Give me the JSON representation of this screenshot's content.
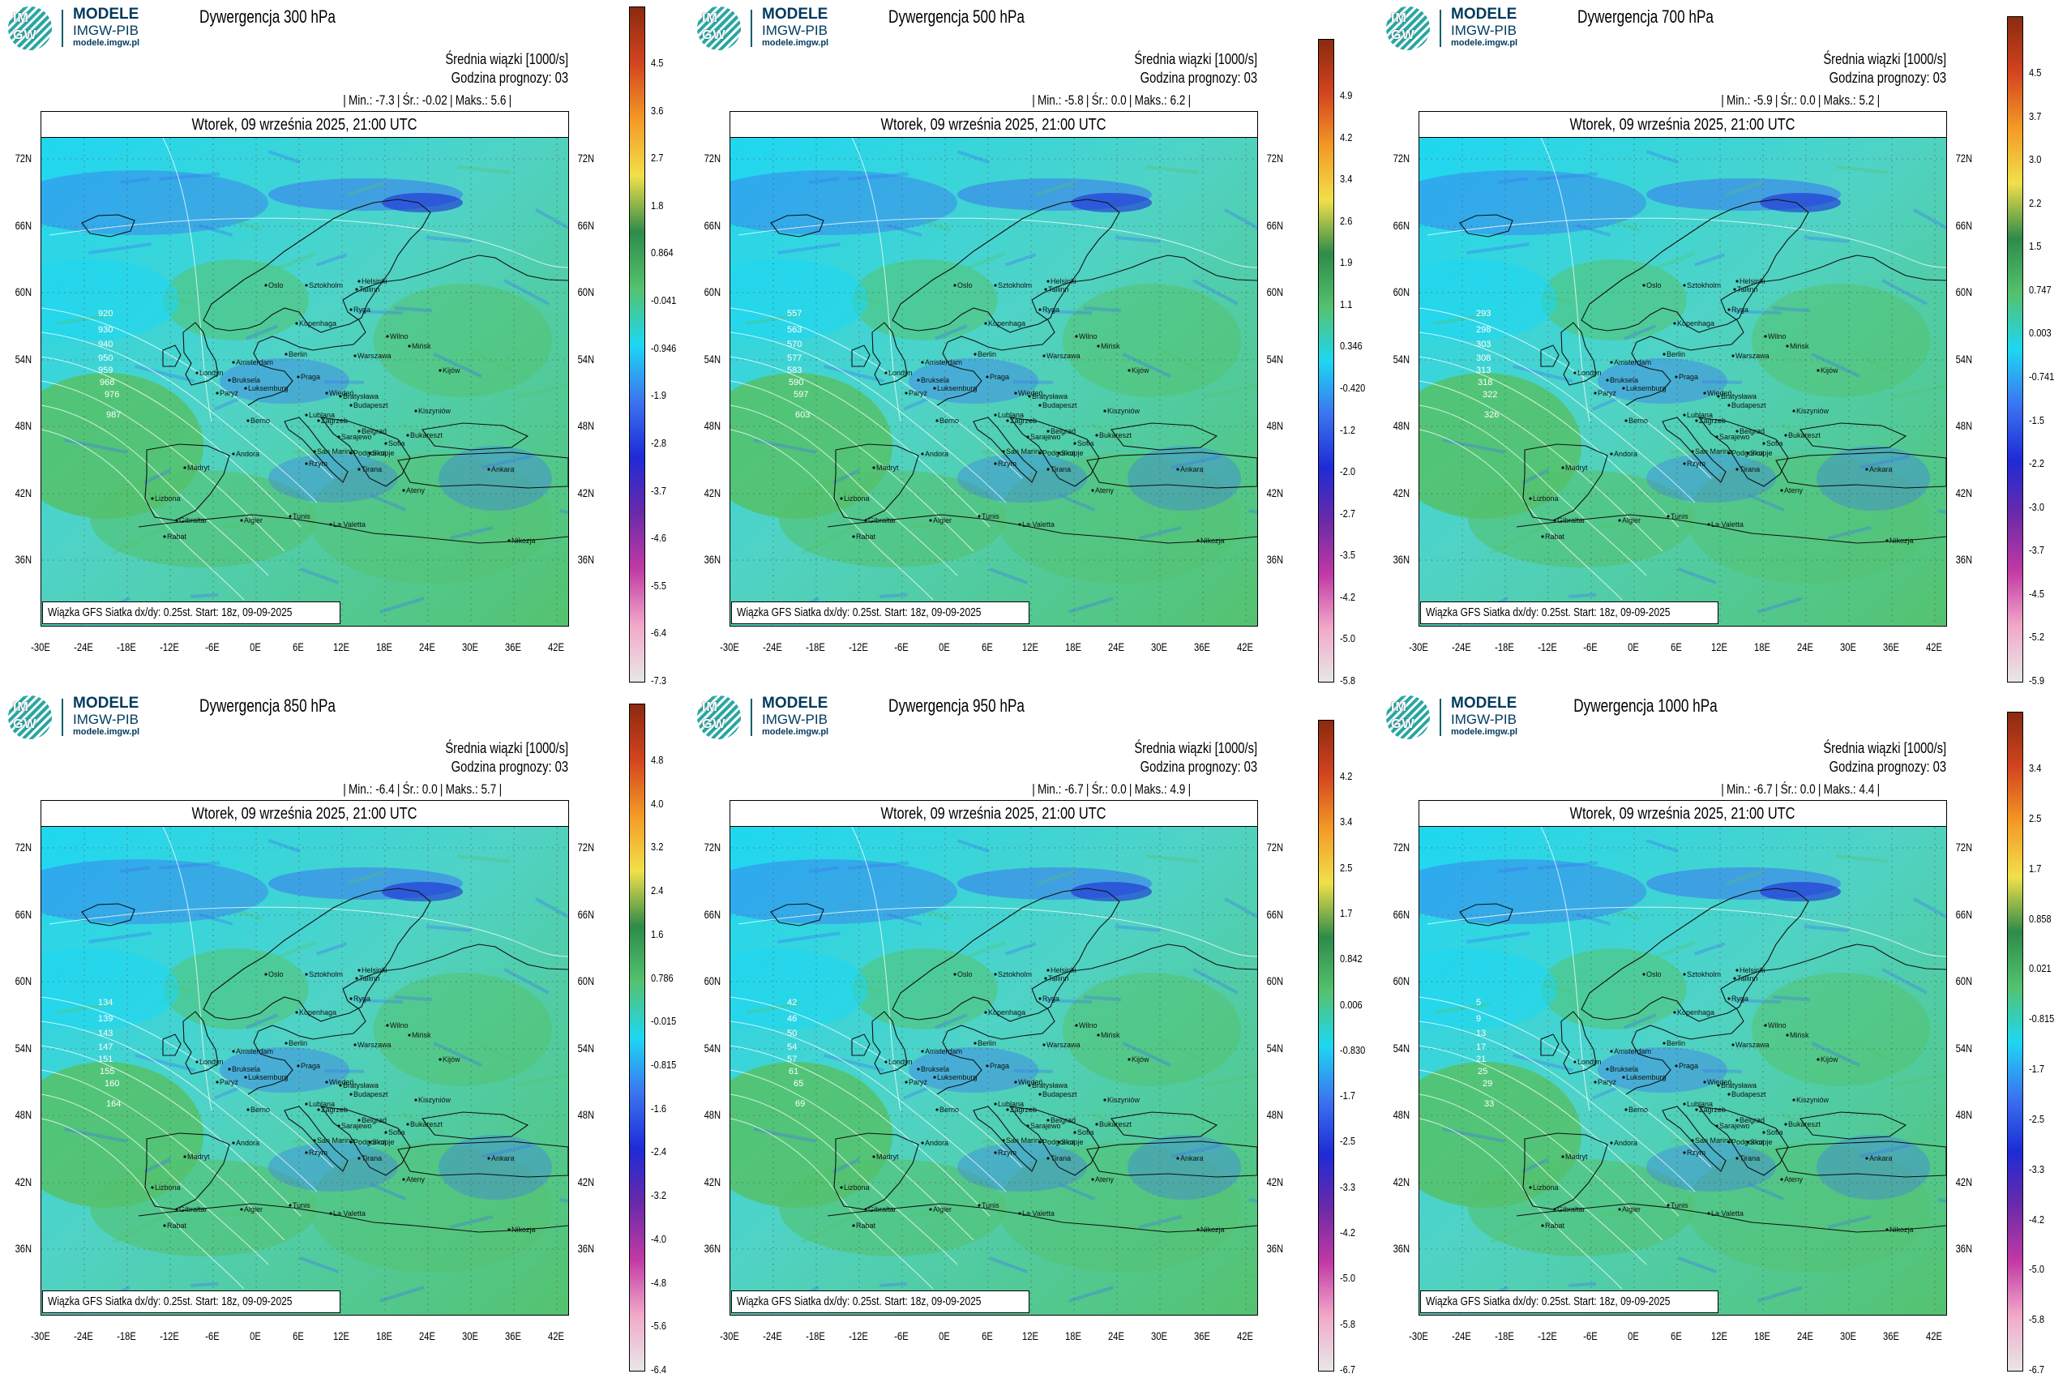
{
  "logo": {
    "line1": "MODELE",
    "line2": "IMGW-PIB",
    "line3": "modele.imgw.pl",
    "badge_top": "IM",
    "badge_bottom": "GW"
  },
  "common": {
    "subtitle": "Średnia wiązki [1000/s]",
    "forecast": "Godzina prognozy: 03",
    "date": "Wtorek, 09 września 2025, 21:00 UTC",
    "source": "Wiązka GFS Siatka dx/dy: 0.25st. Start: 18z, 09-09-2025",
    "min_label": "Min.:",
    "avg_label": "Śr.:",
    "max_label": "Maks.:",
    "lat_labels": [
      "72N",
      "66N",
      "60N",
      "54N",
      "48N",
      "42N",
      "36N"
    ],
    "lon_labels": [
      "-30E",
      "-24E",
      "-18E",
      "-12E",
      "-6E",
      "0E",
      "6E",
      "12E",
      "18E",
      "24E",
      "30E",
      "36E",
      "42E"
    ],
    "cities": [
      "Oslo",
      "Sztokholm",
      "Helsinki",
      "Tallinn",
      "Ryga",
      "Kopenhaga",
      "Wilno",
      "Mińsk",
      "Amsterdam",
      "Berlin",
      "Warszawa",
      "Londyn",
      "Bruksela",
      "Paryż",
      "Luksemburg",
      "Praga",
      "Kijów",
      "Wiedeń",
      "Bratysława",
      "Budapeszt",
      "Berno",
      "Lublana",
      "Zagrzeb",
      "Belgrad",
      "Bukareszt",
      "Kiszyniów",
      "Sarajewo",
      "Podgorica",
      "Skopje",
      "Sofia",
      "Andora",
      "San Marino",
      "Tirana",
      "Rzym",
      "Madryt",
      "Lizbona",
      "Gibraltar",
      "Algier",
      "Tunis",
      "La Valetta",
      "Rabat",
      "Ateny",
      "Ankara",
      "Nikozja"
    ]
  },
  "colorbar_colors": {
    "bottom": "#e7e7e7",
    "pink": "#f2a9c9",
    "magenta": "#c13aa4",
    "purple": "#6b2aa8",
    "darkblue": "#1e2bd6",
    "blue": "#3b75f0",
    "cyan": "#1ed7f2",
    "green": "#54c26e",
    "darkgreen": "#2e8b4a",
    "yellow": "#f1e04a",
    "orange": "#f39a26",
    "red": "#d3441f",
    "darkred": "#8b2a10"
  },
  "panels": [
    {
      "title": "Dywergencja 300 hPa",
      "min": "-7.3",
      "avg": "-0.02",
      "max": "5.6",
      "ticks": [
        "4.5",
        "3.6",
        "2.7",
        "1.8",
        "0.864",
        "-0.041",
        "-0.946",
        "-1.9",
        "-2.8",
        "-3.7",
        "-4.6",
        "-5.5",
        "-6.4",
        "-7.3"
      ],
      "contours": [
        "920",
        "930",
        "940",
        "950",
        "959",
        "968",
        "976",
        "987"
      ]
    },
    {
      "title": "Dywergencja 500 hPa",
      "min": "-5.8",
      "avg": "0.0",
      "max": "6.2",
      "ticks": [
        "4.9",
        "4.2",
        "3.4",
        "2.6",
        "1.9",
        "1.1",
        "0.346",
        "-0.420",
        "-1.2",
        "-2.0",
        "-2.7",
        "-3.5",
        "-4.2",
        "-5.0",
        "-5.8"
      ],
      "contours": [
        "557",
        "563",
        "570",
        "577",
        "583",
        "590",
        "597",
        "603"
      ]
    },
    {
      "title": "Dywergencja 700 hPa",
      "min": "-5.9",
      "avg": "0.0",
      "max": "5.2",
      "ticks": [
        "4.5",
        "3.7",
        "3.0",
        "2.2",
        "1.5",
        "0.747",
        "0.003",
        "-0.741",
        "-1.5",
        "-2.2",
        "-3.0",
        "-3.7",
        "-4.5",
        "-5.2",
        "-5.9"
      ],
      "contours": [
        "293",
        "298",
        "303",
        "308",
        "313",
        "318",
        "322",
        "326"
      ]
    },
    {
      "title": "Dywergencja 850 hPa",
      "min": "-6.4",
      "avg": "0.0",
      "max": "5.7",
      "ticks": [
        "4.8",
        "4.0",
        "3.2",
        "2.4",
        "1.6",
        "0.786",
        "-0.015",
        "-0.815",
        "-1.6",
        "-2.4",
        "-3.2",
        "-4.0",
        "-4.8",
        "-5.6",
        "-6.4"
      ],
      "contours": [
        "134",
        "139",
        "143",
        "147",
        "151",
        "155",
        "160",
        "164"
      ]
    },
    {
      "title": "Dywergencja 950 hPa",
      "min": "-6.7",
      "avg": "0.0",
      "max": "4.9",
      "ticks": [
        "4.2",
        "3.4",
        "2.5",
        "1.7",
        "0.842",
        "0.006",
        "-0.830",
        "-1.7",
        "-2.5",
        "-3.3",
        "-4.2",
        "-5.0",
        "-5.8",
        "-6.7"
      ],
      "contours": [
        "42",
        "46",
        "50",
        "54",
        "57",
        "61",
        "65",
        "69"
      ]
    },
    {
      "title": "Dywergencja 1000 hPa",
      "min": "-6.7",
      "avg": "0.0",
      "max": "4.4",
      "ticks": [
        "3.4",
        "2.5",
        "1.7",
        "0.858",
        "0.021",
        "-0.815",
        "-1.7",
        "-2.5",
        "-3.3",
        "-4.2",
        "-5.0",
        "-5.8",
        "-6.7"
      ],
      "contours": [
        "5",
        "9",
        "13",
        "17",
        "21",
        "25",
        "29",
        "33"
      ]
    }
  ]
}
